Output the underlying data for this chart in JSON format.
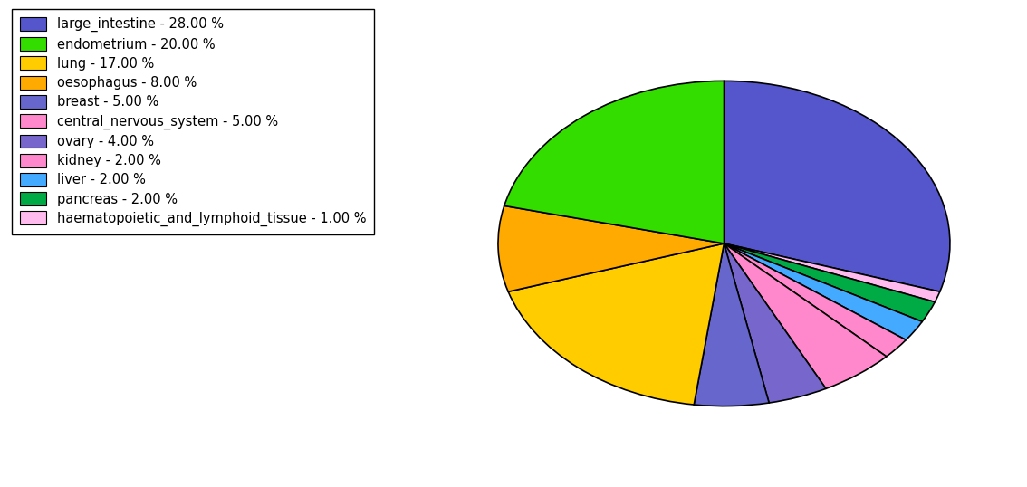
{
  "legend_labels": [
    "large_intestine - 28.00 %",
    "endometrium - 20.00 %",
    "lung - 17.00 %",
    "oesophagus - 8.00 %",
    "breast - 5.00 %",
    "central_nervous_system - 5.00 %",
    "ovary - 4.00 %",
    "kidney - 2.00 %",
    "liver - 2.00 %",
    "pancreas - 2.00 %",
    "haematopoietic_and_lymphoid_tissue - 1.00 %"
  ],
  "legend_colors": [
    "#5555cc",
    "#33dd00",
    "#ffcc00",
    "#ffaa00",
    "#6666cc",
    "#ff88cc",
    "#7766cc",
    "#ff88cc",
    "#44aaff",
    "#00aa44",
    "#ffbbee"
  ],
  "pie_order_labels": [
    "large_intestine",
    "haematopoietic_and_lymphoid_tissue",
    "pancreas",
    "liver",
    "kidney",
    "central_nervous_system",
    "ovary",
    "breast",
    "lung",
    "oesophagus",
    "endometrium"
  ],
  "pie_values": [
    28,
    1,
    2,
    2,
    2,
    5,
    4,
    5,
    17,
    8,
    20
  ],
  "pie_colors": [
    "#5555cc",
    "#ffbbee",
    "#00aa44",
    "#44aaff",
    "#ff88cc",
    "#ff88cc",
    "#7766cc",
    "#6666cc",
    "#ffcc00",
    "#ffaa00",
    "#33dd00"
  ],
  "startangle": 90,
  "aspect_ratio": 0.72
}
